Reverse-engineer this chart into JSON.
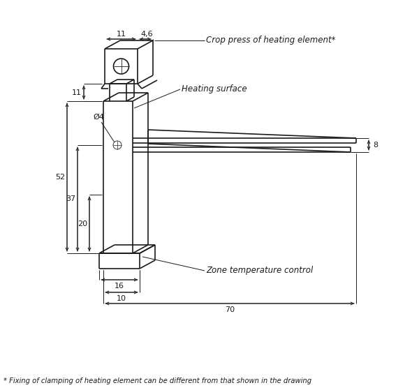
{
  "bg_color": "#ffffff",
  "line_color": "#1a1a1a",
  "dim_color": "#1a1a1a",
  "text_color": "#1a1a1a",
  "figsize": [
    6.0,
    5.59
  ],
  "dpi": 100,
  "annotations": {
    "crop_press": "Crop press of heating element*",
    "heating_surface": "Heating surface",
    "zone_temp": "Zone temperature control",
    "footnote": "* Fixing of clamping of heating element can be different from that shown in the drawing"
  },
  "dims": {
    "d11_top": "11",
    "d46": "4,6",
    "d11_neck": "11",
    "d52": "52",
    "d37": "37",
    "d20": "20",
    "d16": "16",
    "d10": "10",
    "d8": "8",
    "d70": "70",
    "hole_diam": "Ø4"
  }
}
